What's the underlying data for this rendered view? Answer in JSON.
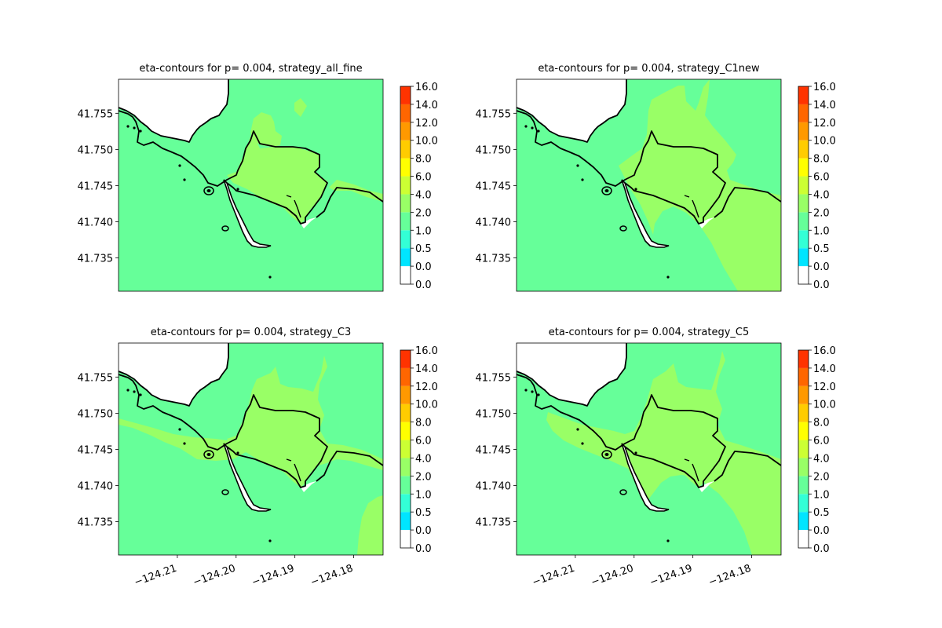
{
  "colors": {
    "background": "#ffffff",
    "coastline": "#000000",
    "land": "#ffffff"
  },
  "colorbar": {
    "ticks": [
      "0.0",
      "0.0",
      "0.5",
      "1.0",
      "2.0",
      "4.0",
      "6.0",
      "8.0",
      "10.0",
      "12.0",
      "14.0",
      "16.0"
    ],
    "colors": [
      "#ffffff",
      "#00e5ff",
      "#33ffd6",
      "#66ff99",
      "#99ff66",
      "#ccff33",
      "#ffff00",
      "#ffcc00",
      "#ff9900",
      "#ff6600",
      "#ff3300",
      "#ff0000"
    ]
  },
  "chart_data": [
    {
      "type": "heatmap",
      "title": "eta-contours for p= 0.004, strategy_all_fine",
      "xlabel": "",
      "ylabel": "",
      "xlim": [
        -124.22,
        -124.175
      ],
      "ylim": [
        41.7304,
        41.7597
      ],
      "xticks": [
        "−124.21",
        "−124.20",
        "−124.19",
        "−124.18"
      ],
      "yticks": [
        "41.735",
        "41.740",
        "41.745",
        "41.750",
        "41.755"
      ],
      "show_xticks": false,
      "levels": [
        0.0,
        0.0,
        0.5,
        1.0,
        2.0,
        4.0,
        6.0,
        8.0,
        10.0,
        12.0,
        14.0,
        16.0
      ],
      "regions": [
        {
          "band": "1.0-2.0",
          "area": "offshore and outer bay"
        },
        {
          "band": "2.0-4.0",
          "area": "inner harbor basin and northeast shore strip"
        }
      ]
    },
    {
      "type": "heatmap",
      "title": "eta-contours for p= 0.004, strategy_C1new",
      "xlabel": "",
      "ylabel": "",
      "xlim": [
        -124.22,
        -124.175
      ],
      "ylim": [
        41.7304,
        41.7597
      ],
      "xticks": [
        "−124.21",
        "−124.20",
        "−124.19",
        "−124.18"
      ],
      "yticks": [
        "41.735",
        "41.740",
        "41.745",
        "41.750",
        "41.755"
      ],
      "show_xticks": false,
      "levels": [
        0.0,
        0.0,
        0.5,
        1.0,
        2.0,
        4.0,
        6.0,
        8.0,
        10.0,
        12.0,
        14.0,
        16.0
      ],
      "regions": [
        {
          "band": "1.0-2.0",
          "area": "offshore west and south"
        },
        {
          "band": "2.0-4.0",
          "area": "harbor, inner bay, northern marsh and east side"
        }
      ]
    },
    {
      "type": "heatmap",
      "title": "eta-contours for p= 0.004, strategy_C3",
      "xlabel": "",
      "ylabel": "",
      "xlim": [
        -124.22,
        -124.175
      ],
      "ylim": [
        41.7304,
        41.7597
      ],
      "xticks": [
        "−124.21",
        "−124.20",
        "−124.19",
        "−124.18"
      ],
      "yticks": [
        "41.735",
        "41.740",
        "41.745",
        "41.750",
        "41.755"
      ],
      "show_xticks": true,
      "levels": [
        0.0,
        0.0,
        0.5,
        1.0,
        2.0,
        4.0,
        6.0,
        8.0,
        10.0,
        12.0,
        14.0,
        16.0
      ],
      "regions": [
        {
          "band": "1.0-2.0",
          "area": "offshore"
        },
        {
          "band": "2.0-4.0",
          "area": "coastal strip, harbor, inner bay and southeast pocket"
        }
      ]
    },
    {
      "type": "heatmap",
      "title": "eta-contours for p= 0.004, strategy_C5",
      "xlabel": "",
      "ylabel": "",
      "xlim": [
        -124.22,
        -124.175
      ],
      "ylim": [
        41.7304,
        41.7597
      ],
      "xticks": [
        "−124.21",
        "−124.20",
        "−124.19",
        "−124.18"
      ],
      "yticks": [
        "41.735",
        "41.740",
        "41.745",
        "41.750",
        "41.755"
      ],
      "show_xticks": true,
      "levels": [
        0.0,
        0.0,
        0.5,
        1.0,
        2.0,
        4.0,
        6.0,
        8.0,
        10.0,
        12.0,
        14.0,
        16.0
      ],
      "regions": [
        {
          "band": "1.0-2.0",
          "area": "offshore"
        },
        {
          "band": "2.0-4.0",
          "area": "harbor, inner bay, northern marsh and southeast"
        }
      ]
    }
  ]
}
